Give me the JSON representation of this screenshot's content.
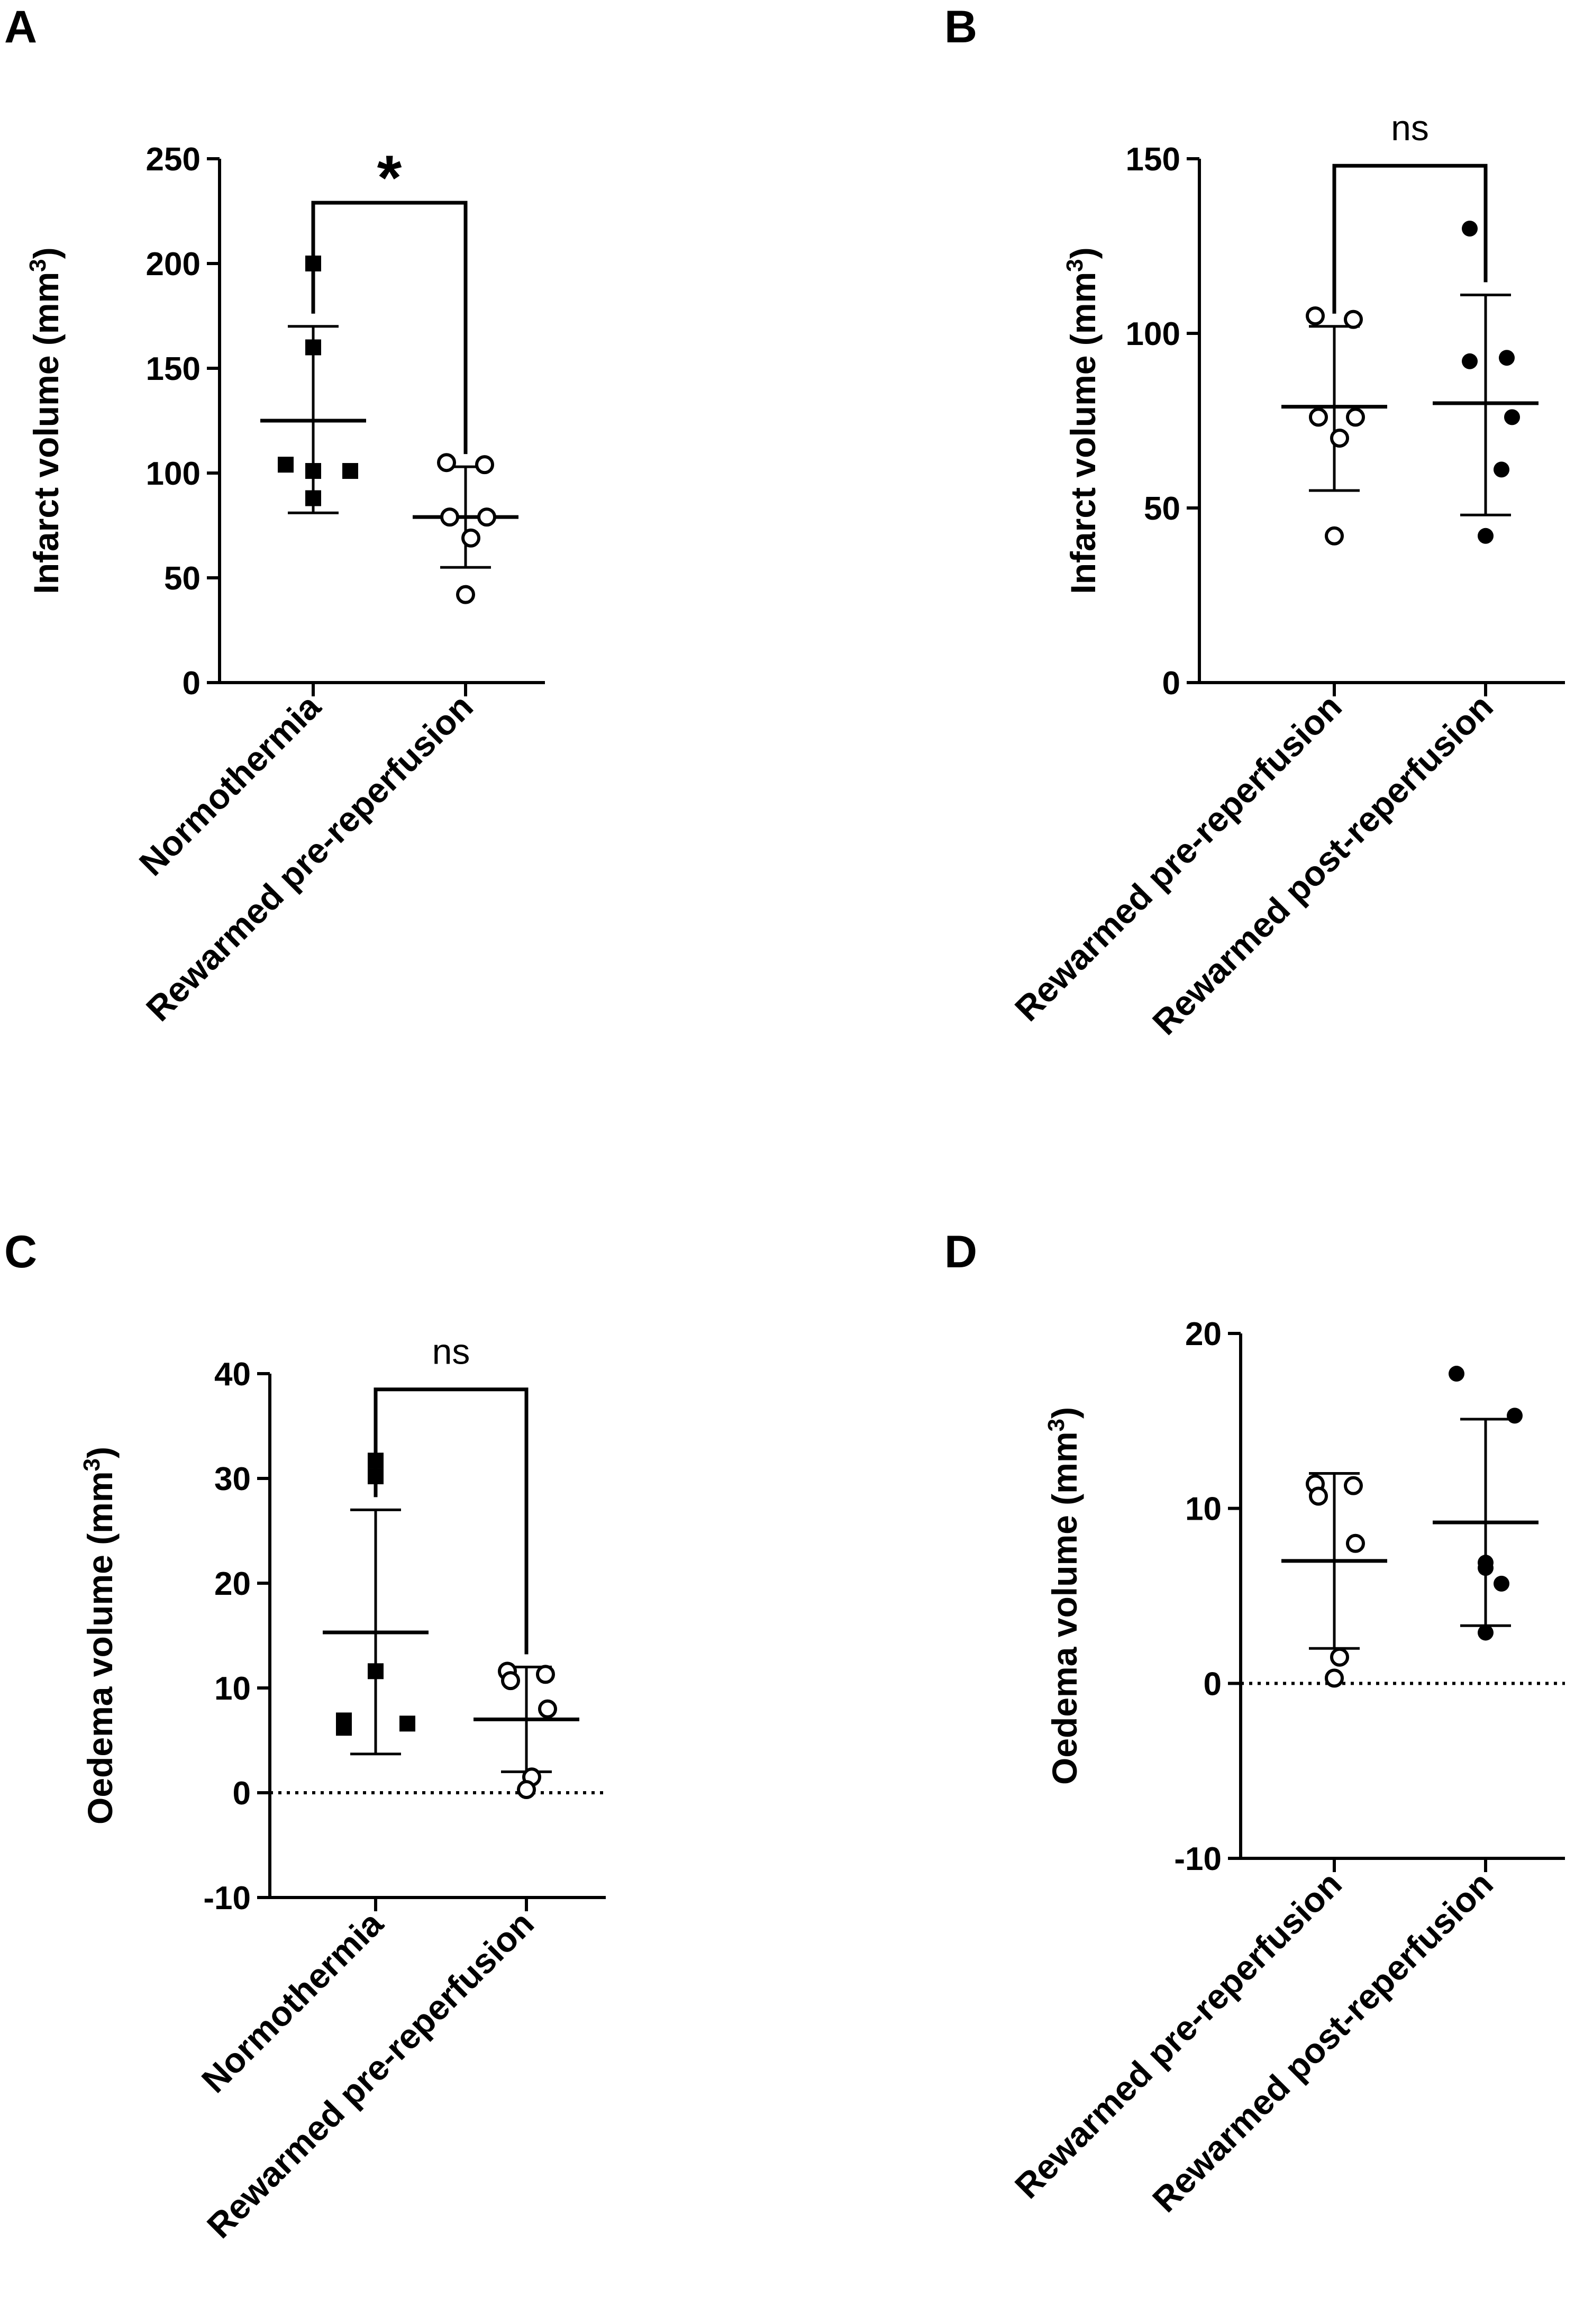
{
  "figure": {
    "colors": {
      "ink": "#000000",
      "background": "#ffffff"
    }
  },
  "chart_data": [
    {
      "panel": "A",
      "type": "scatter",
      "title": "",
      "xlabel": "",
      "ylabel": "Infarct volume (mm3)",
      "ylabel_main": "Infarct volume (mm",
      "ylabel_sup": "3",
      "ylabel_end": ")",
      "ylim": [
        0,
        250
      ],
      "yticks": [
        0,
        50,
        100,
        150,
        200,
        250
      ],
      "ytick_labels": [
        "0",
        "50",
        "100",
        "150",
        "200",
        "250"
      ],
      "zero_line": false,
      "categories": [
        "Normothermia",
        "Rewarmed pre-reperfusion"
      ],
      "series": [
        {
          "name": "Normothermia",
          "marker": "filled-square",
          "values": [
            199,
            161,
            104,
            101,
            101,
            88
          ],
          "mean": 125,
          "sd_lower": 81,
          "sd_upper": 170
        },
        {
          "name": "Rewarmed pre-reperfusion",
          "marker": "open-circle",
          "values": [
            105,
            104,
            79,
            79,
            69,
            42
          ],
          "mean": 79,
          "sd_lower": 55,
          "sd_upper": 103
        }
      ],
      "significance": {
        "label": "*",
        "from": 0,
        "to": 1,
        "y": 229
      }
    },
    {
      "panel": "B",
      "type": "scatter",
      "title": "",
      "xlabel": "",
      "ylabel": "Infarct volume (mm3)",
      "ylabel_main": "Infarct volume (mm",
      "ylabel_sup": "3",
      "ylabel_end": ")",
      "ylim": [
        0,
        150
      ],
      "yticks": [
        0,
        50,
        100,
        150
      ],
      "ytick_labels": [
        "0",
        "50",
        "100",
        "150"
      ],
      "zero_line": false,
      "categories": [
        "Rewarmed pre-reperfusion",
        "Rewarmed post-reperfusion"
      ],
      "series": [
        {
          "name": "Rewarmed pre-reperfusion",
          "marker": "open-circle",
          "values": [
            105,
            104,
            76,
            76,
            70,
            42
          ],
          "mean": 79,
          "sd_lower": 55,
          "sd_upper": 102
        },
        {
          "name": "Rewarmed post-reperfusion",
          "marker": "filled-circle",
          "values": [
            130,
            93,
            92,
            76,
            61,
            42
          ],
          "mean": 80,
          "sd_lower": 48,
          "sd_upper": 111
        }
      ],
      "significance": {
        "label": "ns",
        "from": 0,
        "to": 1,
        "y": 148
      }
    },
    {
      "panel": "C",
      "type": "scatter",
      "title": "",
      "xlabel": "",
      "ylabel": "Oedema volume (mm3)",
      "ylabel_main": "Oedema volume (mm",
      "ylabel_sup": "3",
      "ylabel_end": ")",
      "ylim": [
        -10,
        40
      ],
      "yticks": [
        -10,
        0,
        10,
        20,
        30,
        40
      ],
      "ytick_labels": [
        "-10",
        "0",
        "10",
        "20",
        "30",
        "40"
      ],
      "zero_line": true,
      "categories": [
        "Normothermia",
        "Rewarmed pre-reperfusion"
      ],
      "series": [
        {
          "name": "Normothermia",
          "marker": "filled-square",
          "values": [
            31.7,
            30.2,
            11.6,
            6.9,
            6.6,
            6.2
          ],
          "mean": 15.3,
          "sd_lower": 3.7,
          "sd_upper": 27
        },
        {
          "name": "Rewarmed pre-reperfusion",
          "marker": "open-circle",
          "values": [
            11.6,
            11.3,
            10.7,
            8,
            1.5,
            0.3
          ],
          "mean": 7,
          "sd_lower": 2,
          "sd_upper": 12
        }
      ],
      "significance": {
        "label": "ns",
        "from": 0,
        "to": 1,
        "y": 38.5
      }
    },
    {
      "panel": "D",
      "type": "scatter",
      "title": "",
      "xlabel": "",
      "ylabel": "Oedema volume (mm3)",
      "ylabel_main": "Oedema volume (mm",
      "ylabel_sup": "3",
      "ylabel_end": ")",
      "ylim": [
        -10,
        20
      ],
      "yticks": [
        -10,
        0,
        10,
        20
      ],
      "ytick_labels": [
        "-10",
        "0",
        "10",
        "20"
      ],
      "zero_line": true,
      "categories": [
        "Rewarmed pre-reperfusion",
        "Rewarmed post-reperfusion"
      ],
      "series": [
        {
          "name": "Rewarmed pre-reperfusion",
          "marker": "open-circle",
          "values": [
            11.4,
            11.3,
            10.7,
            8,
            1.5,
            0.3
          ],
          "mean": 7,
          "sd_lower": 2,
          "sd_upper": 12
        },
        {
          "name": "Rewarmed post-reperfusion",
          "marker": "filled-circle",
          "values": [
            17.7,
            15.3,
            6.9,
            6.6,
            5.7,
            2.9
          ],
          "mean": 9.2,
          "sd_lower": 3.3,
          "sd_upper": 15.1
        }
      ],
      "significance": null
    }
  ]
}
